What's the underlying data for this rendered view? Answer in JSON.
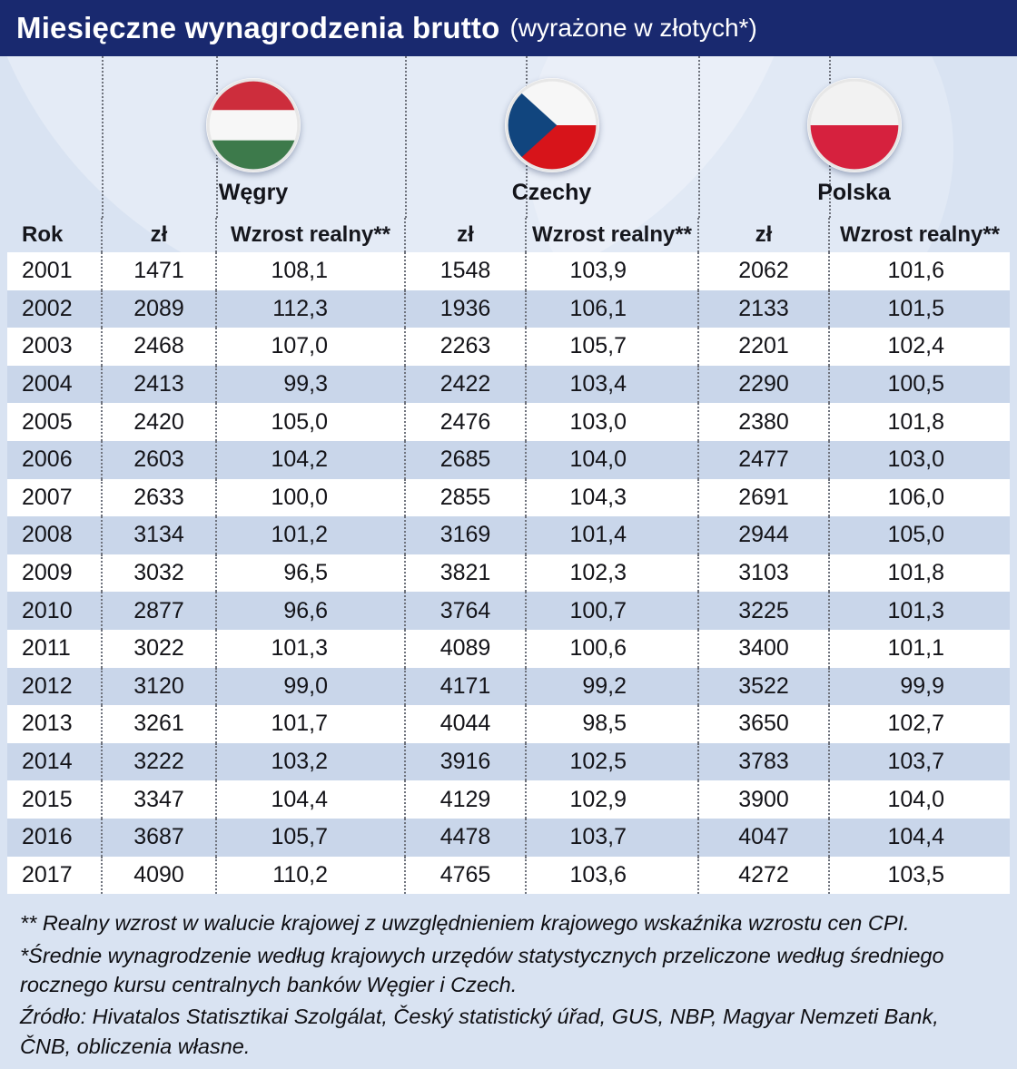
{
  "title": {
    "main": "Miesięczne wynagrodzenia brutto",
    "sub": "(wyrażone w złotych*)"
  },
  "colors": {
    "title_bar": "#19296f",
    "page_background": "#d9e3f2",
    "row_stripe": "#c9d6ea",
    "row_white": "#ffffff",
    "hungary_red": "#cd2d3c",
    "hungary_green": "#3d7a4b",
    "czech_red": "#d7141a",
    "czech_blue": "#11457e",
    "poland_red": "#d6213e"
  },
  "countries": [
    {
      "name": "Węgry",
      "flag": "hungary-flag"
    },
    {
      "name": "Czechy",
      "flag": "czech-flag"
    },
    {
      "name": "Polska",
      "flag": "poland-flag"
    }
  ],
  "table": {
    "headers": {
      "year": "Rok",
      "amount": "zł",
      "growth": "Wzrost realny**"
    },
    "rows": [
      [
        "2001",
        "1471",
        "108,1",
        "1548",
        "103,9",
        "2062",
        "101,6"
      ],
      [
        "2002",
        "2089",
        "112,3",
        "1936",
        "106,1",
        "2133",
        "101,5"
      ],
      [
        "2003",
        "2468",
        "107,0",
        "2263",
        "105,7",
        "2201",
        "102,4"
      ],
      [
        "2004",
        "2413",
        "99,3",
        "2422",
        "103,4",
        "2290",
        "100,5"
      ],
      [
        "2005",
        "2420",
        "105,0",
        "2476",
        "103,0",
        "2380",
        "101,8"
      ],
      [
        "2006",
        "2603",
        "104,2",
        "2685",
        "104,0",
        "2477",
        "103,0"
      ],
      [
        "2007",
        "2633",
        "100,0",
        "2855",
        "104,3",
        "2691",
        "106,0"
      ],
      [
        "2008",
        "3134",
        "101,2",
        "3169",
        "101,4",
        "2944",
        "105,0"
      ],
      [
        "2009",
        "3032",
        "96,5",
        "3821",
        "102,3",
        "3103",
        "101,8"
      ],
      [
        "2010",
        "2877",
        "96,6",
        "3764",
        "100,7",
        "3225",
        "101,3"
      ],
      [
        "2011",
        "3022",
        "101,3",
        "4089",
        "100,6",
        "3400",
        "101,1"
      ],
      [
        "2012",
        "3120",
        "99,0",
        "4171",
        "99,2",
        "3522",
        "99,9"
      ],
      [
        "2013",
        "3261",
        "101,7",
        "4044",
        "98,5",
        "3650",
        "102,7"
      ],
      [
        "2014",
        "3222",
        "103,2",
        "3916",
        "102,5",
        "3783",
        "103,7"
      ],
      [
        "2015",
        "3347",
        "104,4",
        "4129",
        "102,9",
        "3900",
        "104,0"
      ],
      [
        "2016",
        "3687",
        "105,7",
        "4478",
        "103,7",
        "4047",
        "104,4"
      ],
      [
        "2017",
        "4090",
        "110,2",
        "4765",
        "103,6",
        "4272",
        "103,5"
      ]
    ]
  },
  "footnotes": [
    "** Realny wzrost w walucie krajowej z uwzględnieniem krajowego wskaźnika wzrostu cen CPI.",
    "*Średnie wynagrodzenie według krajowych urzędów statystycznych przeliczone według średniego rocznego kursu centralnych banków Węgier i Czech.",
    "Źródło: Hivatalos Statisztikai Szolgálat, Český statistický úřad, GUS, NBP, Magyar Nemzeti Bank, ČNB, obliczenia własne."
  ],
  "chart_data": {
    "type": "table",
    "title": "Miesięczne wynagrodzenia brutto (wyrażone w złotych*)",
    "categories": [
      2001,
      2002,
      2003,
      2004,
      2005,
      2006,
      2007,
      2008,
      2009,
      2010,
      2011,
      2012,
      2013,
      2014,
      2015,
      2016,
      2017
    ],
    "series": [
      {
        "name": "Węgry zł",
        "values": [
          1471,
          2089,
          2468,
          2413,
          2420,
          2603,
          2633,
          3134,
          3032,
          2877,
          3022,
          3120,
          3261,
          3222,
          3347,
          3687,
          4090
        ]
      },
      {
        "name": "Węgry wzrost realny",
        "values": [
          108.1,
          112.3,
          107.0,
          99.3,
          105.0,
          104.2,
          100.0,
          101.2,
          96.5,
          96.6,
          101.3,
          99.0,
          101.7,
          103.2,
          104.4,
          105.7,
          110.2
        ]
      },
      {
        "name": "Czechy zł",
        "values": [
          1548,
          1936,
          2263,
          2422,
          2476,
          2685,
          2855,
          3169,
          3821,
          3764,
          4089,
          4171,
          4044,
          3916,
          4129,
          4478,
          4765
        ]
      },
      {
        "name": "Czechy wzrost realny",
        "values": [
          103.9,
          106.1,
          105.7,
          103.4,
          103.0,
          104.0,
          104.3,
          101.4,
          102.3,
          100.7,
          100.6,
          99.2,
          98.5,
          102.5,
          102.9,
          103.7,
          103.6
        ]
      },
      {
        "name": "Polska zł",
        "values": [
          2062,
          2133,
          2201,
          2290,
          2380,
          2477,
          2691,
          2944,
          3103,
          3225,
          3400,
          3522,
          3650,
          3783,
          3900,
          4047,
          4272
        ]
      },
      {
        "name": "Polska wzrost realny",
        "values": [
          101.6,
          101.5,
          102.4,
          100.5,
          101.8,
          103.0,
          106.0,
          105.0,
          101.8,
          101.3,
          101.1,
          99.9,
          102.7,
          103.7,
          104.0,
          104.4,
          103.5
        ]
      }
    ]
  }
}
